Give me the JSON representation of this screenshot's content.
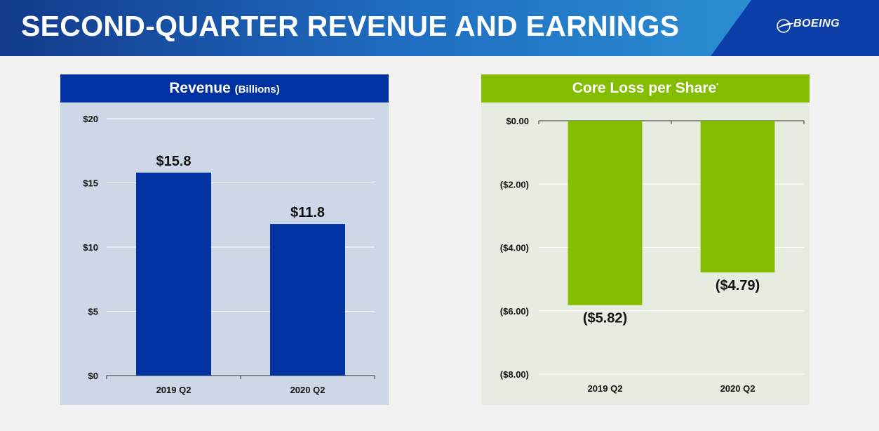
{
  "header": {
    "title": "SECOND-QUARTER REVENUE AND EARNINGS",
    "logo_text": "BOEING",
    "logo_icon": "boeing-logo-icon"
  },
  "chart_data": [
    {
      "type": "bar",
      "title": "Revenue",
      "subtitle": "(Billions)",
      "categories": [
        "2019 Q2",
        "2020 Q2"
      ],
      "values": [
        15.8,
        11.8
      ],
      "value_labels": [
        "$15.8",
        "$11.8"
      ],
      "ylim": [
        0,
        20
      ],
      "yticks": [
        0,
        5,
        10,
        15,
        20
      ],
      "ytick_labels": [
        "$0",
        "$5",
        "$10",
        "$15",
        "$20"
      ],
      "xlabel": "",
      "ylabel": "",
      "grid": true,
      "bar_color": "#0033a1",
      "header_color": "#0033a1",
      "background": "#cdd7e8"
    },
    {
      "type": "bar",
      "title": "Core Loss per Share",
      "title_marker": "*",
      "categories": [
        "2019 Q2",
        "2020 Q2"
      ],
      "values": [
        -5.82,
        -4.79
      ],
      "value_labels": [
        "($5.82)",
        "($4.79)"
      ],
      "ylim": [
        -8,
        0
      ],
      "yticks": [
        0,
        -2,
        -4,
        -6,
        -8
      ],
      "ytick_labels": [
        "$0.00",
        "($2.00)",
        "($4.00)",
        "($6.00)",
        "($8.00)"
      ],
      "xlabel": "",
      "ylabel": "",
      "grid": true,
      "bar_color": "#84bd00",
      "header_color": "#84bd00",
      "background": "#e6ecdf"
    }
  ]
}
